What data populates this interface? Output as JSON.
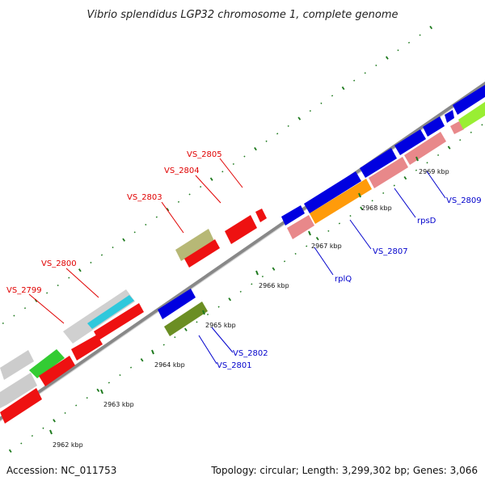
{
  "title": "Vibrio splendidus LGP32 chromosome 1, complete genome",
  "footer": {
    "accession": "Accession: NC_011753",
    "summary": "Topology: circular; Length: 3,299,302 bp; Genes: 3,066"
  },
  "colors": {
    "backbone": "#888888",
    "tick": "#1e7a1e",
    "label_top": "#e00000",
    "label_bottom": "#0000cc"
  },
  "ticks": [
    {
      "label": "2962 kbp"
    },
    {
      "label": "2963 kbp"
    },
    {
      "label": "2964 kbp"
    },
    {
      "label": "2965 kbp"
    },
    {
      "label": "2966 kbp"
    },
    {
      "label": "2967 kbp"
    },
    {
      "label": "2968 kbp"
    },
    {
      "label": "2969 kbp"
    }
  ],
  "genes_labels_top": [
    {
      "name": "VS_2799"
    },
    {
      "name": "VS_2800"
    },
    {
      "name": "VS_2803"
    },
    {
      "name": "VS_2804"
    },
    {
      "name": "VS_2805"
    }
  ],
  "genes_labels_bottom": [
    {
      "name": "VS_2801"
    },
    {
      "name": "VS_2802"
    },
    {
      "name": "rplQ"
    },
    {
      "name": "VS_2807"
    },
    {
      "name": "rpsD"
    },
    {
      "name": "VS_2809"
    }
  ]
}
